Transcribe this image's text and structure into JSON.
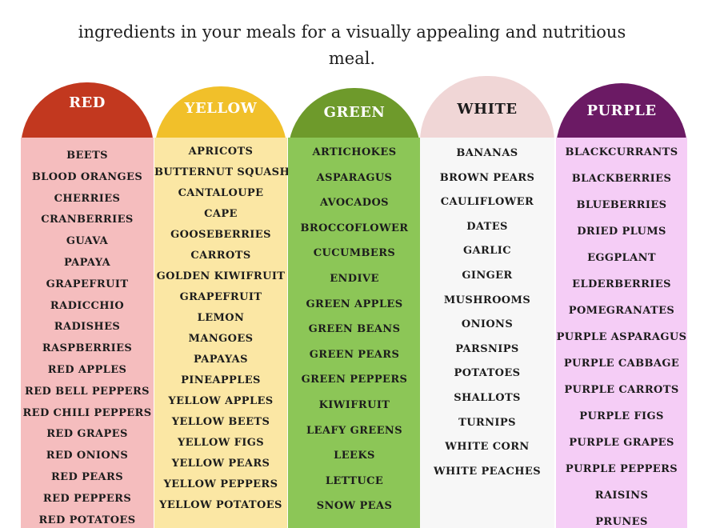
{
  "intro_lines": [
    "ingredients in your meals for a visually appealing and nutritious",
    "meal."
  ],
  "columns": [
    {
      "title": "RED",
      "cap_color": "#c2381f",
      "body_color": "#f5bdbe",
      "title_color": "#ffffff",
      "items": [
        "BEETS",
        "BLOOD ORANGES",
        "CHERRIES",
        "CRANBERRIES",
        "GUAVA",
        "PAPAYA",
        "GRAPEFRUIT",
        "RADICCHIO",
        "RADISHES",
        "RASPBERRIES",
        "RED APPLES",
        "RED BELL PEPPERS",
        "RED CHILI PEPPERS",
        "RED GRAPES",
        "RED ONIONS",
        "RED PEARS",
        "RED PEPPERS",
        "RED POTATOES"
      ]
    },
    {
      "title": "YELLOW",
      "cap_color": "#f1c02a",
      "body_color": "#fbe7a4",
      "title_color": "#ffffff",
      "items": [
        "APRICOTS",
        "BUTTERNUT SQUASH",
        "CANTALOUPE",
        "CAPE",
        "GOOSEBERRIES",
        "CARROTS",
        "GOLDEN KIWIFRUIT",
        "GRAPEFRUIT",
        "LEMON",
        "MANGOES",
        "PAPAYAS",
        "PINEAPPLES",
        "YELLOW APPLES",
        "YELLOW BEETS",
        "YELLOW FIGS",
        "YELLOW PEARS",
        "YELLOW PEPPERS",
        "YELLOW POTATOES"
      ]
    },
    {
      "title": "GREEN",
      "cap_color": "#6e9a2b",
      "body_color": "#8cc657",
      "title_color": "#ffffff",
      "items": [
        "ARTICHOKES",
        "ASPARAGUS",
        "AVOCADOS",
        "BROCCOFLOWER",
        "CUCUMBERS",
        "ENDIVE",
        "GREEN APPLES",
        "GREEN BEANS",
        "GREEN PEARS",
        "GREEN PEPPERS",
        "KIWIFRUIT",
        "LEAFY GREENS",
        "LEEKS",
        "LETTUCE",
        "SNOW PEAS"
      ]
    },
    {
      "title": "WHITE",
      "cap_color": "#f0d6d6",
      "body_color": "#f7f7f7",
      "title_color": "#1c1c1c",
      "items": [
        "BANANAS",
        "BROWN PEARS",
        "CAULIFLOWER",
        "DATES",
        "GARLIC",
        "GINGER",
        "MUSHROOMS",
        "ONIONS",
        "PARSNIPS",
        "POTATOES",
        "SHALLOTS",
        "TURNIPS",
        "WHITE CORN",
        "WHITE PEACHES"
      ]
    },
    {
      "title": "PURPLE",
      "cap_color": "#6b1a64",
      "body_color": "#f5cdf6",
      "title_color": "#ffffff",
      "items": [
        "BLACKCURRANTS",
        "BLACKBERRIES",
        "BLUEBERRIES",
        "DRIED PLUMS",
        "EGGPLANT",
        "ELDERBERRIES",
        "POMEGRANATES",
        "PURPLE ASPARAGUS",
        "PURPLE CABBAGE",
        "PURPLE CARROTS",
        "PURPLE FIGS",
        "PURPLE GRAPES",
        "PURPLE PEPPERS",
        "RAISINS",
        "PRUNES"
      ]
    }
  ]
}
